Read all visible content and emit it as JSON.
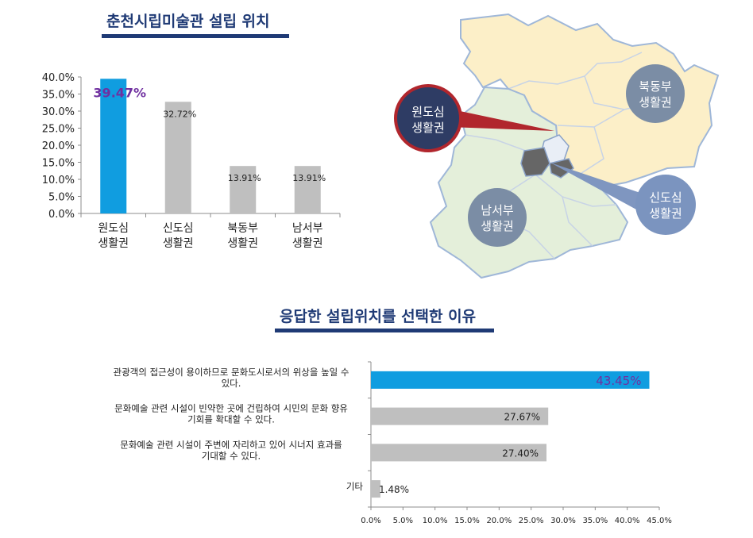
{
  "titles": {
    "location": "춘천시립미술관 설립 위치",
    "reason": "응답한 설립위치를 선택한 이유"
  },
  "colors": {
    "highlight_bar": "#109de0",
    "normal_bar": "#bfbfbf",
    "highlight_label": "#7030a0",
    "title": "#1f3a75"
  },
  "map": {
    "regions": {
      "northeast": "북동부\n생활권",
      "southwest": "남서부\n생활권",
      "old_downtown": "원도심\n생활권",
      "new_downtown": "신도심\n생활권"
    }
  },
  "chart_data": [
    {
      "type": "bar",
      "title": "춘천시립미술관 설립 위치",
      "categories": [
        "원도심\n생활권",
        "신도심\n생활권",
        "북동부\n생활권",
        "남서부\n생활권"
      ],
      "values": [
        39.47,
        32.72,
        13.91,
        13.91
      ],
      "data_labels": [
        "39.47%",
        "32.72%",
        "13.91%",
        "13.91%"
      ],
      "highlight_index": 0,
      "ylim": [
        0,
        40
      ],
      "yticks": [
        "0.0%",
        "5.0%",
        "10.0%",
        "15.0%",
        "20.0%",
        "25.0%",
        "30.0%",
        "35.0%",
        "40.0%"
      ],
      "grid": false
    },
    {
      "type": "bar",
      "orientation": "horizontal",
      "title": "응답한 설립위치를 선택한 이유",
      "categories": [
        "관광객의 접근성이 용이하므로 문화도시로서의 위상을 높일 수\n있다.",
        "문화예술 관련 시설이 빈약한 곳에 건립하여 시민의 문화 향유\n기회를 확대할 수 있다.",
        "문화예술 관련 시설이 주변에 자리하고 있어 시너지 효과를\n기대할 수 있다.",
        "기타"
      ],
      "values": [
        43.45,
        27.67,
        27.4,
        1.48
      ],
      "data_labels": [
        "43.45%",
        "27.67%",
        "27.40%",
        "1.48%"
      ],
      "highlight_index": 0,
      "xlim": [
        0,
        45
      ],
      "xticks": [
        "0.0%",
        "5.0%",
        "10.0%",
        "15.0%",
        "20.0%",
        "25.0%",
        "30.0%",
        "35.0%",
        "40.0%",
        "45.0%"
      ],
      "grid": false
    }
  ]
}
